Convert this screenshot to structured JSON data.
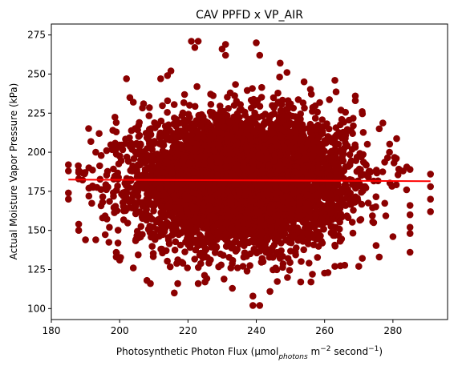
{
  "chart_data": {
    "type": "scatter",
    "title": "CAV PPFD x VP_AIR",
    "xlabel": {
      "main": "Photosynthetic Photon Flux (μmol",
      "sub": "photons",
      "mid": " m",
      "sup1": "−2",
      "end": " second",
      "sup2": "−1",
      "close": ")"
    },
    "ylabel": "Actual Moisture Vapor Pressure (kPa)",
    "xlim": [
      180,
      296
    ],
    "ylim": [
      93,
      282
    ],
    "xticks": [
      180,
      200,
      220,
      240,
      260,
      280
    ],
    "yticks": [
      100,
      125,
      150,
      175,
      200,
      225,
      250,
      275
    ],
    "grid": false,
    "point_color": "#8b0000",
    "trend_color": "#ff0000",
    "cluster": {
      "center_x": 236,
      "center_y": 182,
      "std_x": 15,
      "std_y": 20,
      "count": 6000
    },
    "outliers": [
      {
        "x": 185,
        "y": 192
      },
      {
        "x": 185,
        "y": 188
      },
      {
        "x": 185,
        "y": 174
      },
      {
        "x": 185,
        "y": 170
      },
      {
        "x": 188,
        "y": 187
      },
      {
        "x": 188,
        "y": 183
      },
      {
        "x": 188,
        "y": 154
      },
      {
        "x": 188,
        "y": 150
      },
      {
        "x": 191,
        "y": 190
      },
      {
        "x": 191,
        "y": 177
      },
      {
        "x": 191,
        "y": 172
      },
      {
        "x": 190,
        "y": 144
      },
      {
        "x": 193,
        "y": 144
      },
      {
        "x": 194,
        "y": 212
      },
      {
        "x": 193,
        "y": 200
      },
      {
        "x": 199,
        "y": 219
      },
      {
        "x": 199,
        "y": 213
      },
      {
        "x": 202,
        "y": 247
      },
      {
        "x": 203,
        "y": 235
      },
      {
        "x": 204,
        "y": 232
      },
      {
        "x": 207,
        "y": 231
      },
      {
        "x": 212,
        "y": 247
      },
      {
        "x": 214,
        "y": 249
      },
      {
        "x": 215,
        "y": 252
      },
      {
        "x": 221,
        "y": 271
      },
      {
        "x": 223,
        "y": 271
      },
      {
        "x": 222,
        "y": 267
      },
      {
        "x": 231,
        "y": 269
      },
      {
        "x": 230,
        "y": 266
      },
      {
        "x": 231,
        "y": 262
      },
      {
        "x": 240,
        "y": 270
      },
      {
        "x": 241,
        "y": 262
      },
      {
        "x": 247,
        "y": 257
      },
      {
        "x": 249,
        "y": 251
      },
      {
        "x": 254,
        "y": 245
      },
      {
        "x": 263,
        "y": 246
      },
      {
        "x": 269,
        "y": 236
      },
      {
        "x": 269,
        "y": 233
      },
      {
        "x": 271,
        "y": 226
      },
      {
        "x": 276,
        "y": 215
      },
      {
        "x": 279,
        "y": 200
      },
      {
        "x": 281,
        "y": 196
      },
      {
        "x": 283,
        "y": 188
      },
      {
        "x": 284,
        "y": 176
      },
      {
        "x": 285,
        "y": 166
      },
      {
        "x": 291,
        "y": 186
      },
      {
        "x": 291,
        "y": 178
      },
      {
        "x": 291,
        "y": 170
      },
      {
        "x": 291,
        "y": 162
      },
      {
        "x": 285,
        "y": 160
      },
      {
        "x": 285,
        "y": 152
      },
      {
        "x": 285,
        "y": 148
      },
      {
        "x": 285,
        "y": 136
      },
      {
        "x": 280,
        "y": 146
      },
      {
        "x": 276,
        "y": 133
      },
      {
        "x": 270,
        "y": 127
      },
      {
        "x": 263,
        "y": 127
      },
      {
        "x": 261,
        "y": 123
      },
      {
        "x": 256,
        "y": 117
      },
      {
        "x": 253,
        "y": 117
      },
      {
        "x": 244,
        "y": 111
      },
      {
        "x": 239,
        "y": 108
      },
      {
        "x": 239,
        "y": 102
      },
      {
        "x": 241,
        "y": 102
      },
      {
        "x": 233,
        "y": 113
      },
      {
        "x": 225,
        "y": 117
      },
      {
        "x": 223,
        "y": 116
      },
      {
        "x": 217,
        "y": 116
      },
      {
        "x": 216,
        "y": 110
      },
      {
        "x": 209,
        "y": 116
      },
      {
        "x": 208,
        "y": 118
      },
      {
        "x": 204,
        "y": 126
      },
      {
        "x": 199,
        "y": 133
      },
      {
        "x": 199,
        "y": 136
      },
      {
        "x": 200,
        "y": 131
      },
      {
        "x": 197,
        "y": 152
      },
      {
        "x": 195,
        "y": 158
      },
      {
        "x": 195,
        "y": 168
      },
      {
        "x": 196,
        "y": 178
      }
    ],
    "trend_line": {
      "x": [
        185,
        291
      ],
      "y": [
        182.5,
        181.5
      ]
    }
  }
}
